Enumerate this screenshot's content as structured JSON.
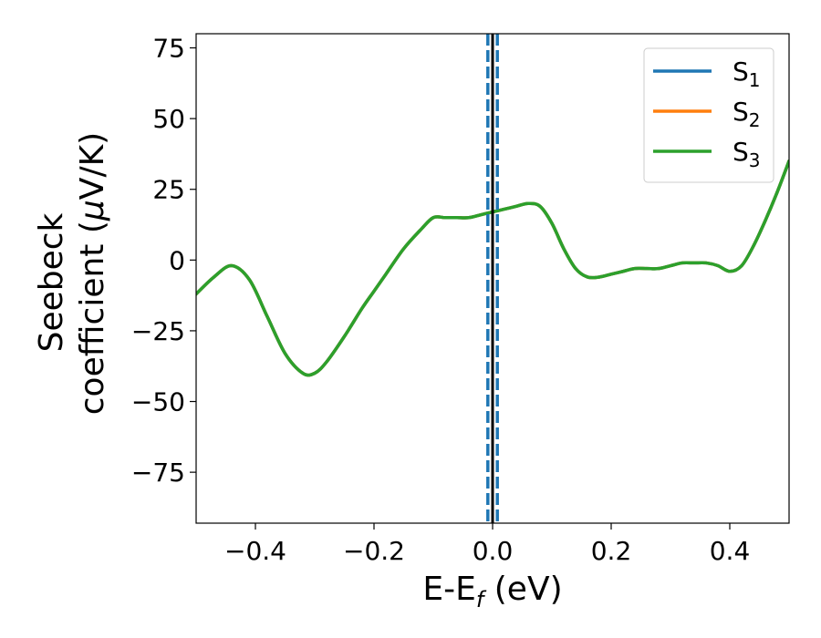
{
  "chart_data": {
    "type": "line",
    "xlabel": "E-E",
    "xlabel_sub": "f",
    "xlabel_unit": " (eV)",
    "ylabel_line1": "Seebeck",
    "ylabel_line2": "coefficient  (",
    "ylabel_mu": "μ",
    "ylabel_unit": "V/K)",
    "xlim": [
      -0.5,
      0.5
    ],
    "ylim": [
      -93,
      80
    ],
    "xticks": [
      -0.4,
      -0.2,
      0.0,
      0.2,
      0.4
    ],
    "xtick_labels": [
      "−0.4",
      "−0.2",
      "0.0",
      "0.2",
      "0.4"
    ],
    "yticks": [
      75,
      50,
      25,
      0,
      -25,
      -50,
      -75
    ],
    "ytick_labels": [
      "75",
      "50",
      "25",
      "0",
      "−25",
      "−50",
      "−75"
    ],
    "legend_position": "top-right",
    "grid": false,
    "vertical_lines": [
      {
        "x": 0.0,
        "color": "#000000",
        "style": "solid"
      },
      {
        "x": -0.008,
        "color": "#1f77b4",
        "style": "dashed"
      },
      {
        "x": 0.008,
        "color": "#1f77b4",
        "style": "dashed"
      }
    ],
    "x": [
      -0.5,
      -0.47,
      -0.44,
      -0.41,
      -0.38,
      -0.35,
      -0.32,
      -0.3,
      -0.28,
      -0.25,
      -0.22,
      -0.2,
      -0.18,
      -0.15,
      -0.12,
      -0.1,
      -0.08,
      -0.06,
      -0.04,
      -0.02,
      0.0,
      0.02,
      0.04,
      0.06,
      0.08,
      0.1,
      0.12,
      0.14,
      0.16,
      0.18,
      0.2,
      0.22,
      0.24,
      0.26,
      0.28,
      0.3,
      0.32,
      0.34,
      0.36,
      0.38,
      0.4,
      0.42,
      0.44,
      0.46,
      0.48,
      0.5
    ],
    "series": [
      {
        "name": "S",
        "name_sub": "1",
        "color": "#1f77b4",
        "values": [
          -12,
          -6,
          -2,
          -7,
          -20,
          -33,
          -40,
          -40,
          -36,
          -27,
          -17,
          -11,
          -5,
          4,
          11,
          15,
          15,
          15,
          15,
          16,
          17,
          18,
          19,
          20,
          19,
          13,
          4,
          -3,
          -6,
          -6,
          -5,
          -4,
          -3,
          -3,
          -3,
          -2,
          -1,
          -1,
          -1,
          -2,
          -4,
          -2,
          5,
          14,
          24,
          35
        ]
      },
      {
        "name": "S",
        "name_sub": "2",
        "color": "#ff7f0e",
        "values": [
          -12,
          -6,
          -2,
          -7,
          -20,
          -33,
          -40,
          -40,
          -36,
          -27,
          -17,
          -11,
          -5,
          4,
          11,
          15,
          15,
          15,
          15,
          16,
          17,
          18,
          19,
          20,
          19,
          13,
          4,
          -3,
          -6,
          -6,
          -5,
          -4,
          -3,
          -3,
          -3,
          -2,
          -1,
          -1,
          -1,
          -2,
          -4,
          -2,
          5,
          14,
          24,
          35
        ]
      },
      {
        "name": "S",
        "name_sub": "3",
        "color": "#2ca02c",
        "values": [
          -12,
          -6,
          -2,
          -7,
          -20,
          -33,
          -40,
          -40,
          -36,
          -27,
          -17,
          -11,
          -5,
          4,
          11,
          15,
          15,
          15,
          15,
          16,
          17,
          18,
          19,
          20,
          19,
          13,
          4,
          -3,
          -6,
          -6,
          -5,
          -4,
          -3,
          -3,
          -3,
          -2,
          -1,
          -1,
          -1,
          -2,
          -4,
          -2,
          5,
          14,
          24,
          35
        ]
      }
    ]
  }
}
